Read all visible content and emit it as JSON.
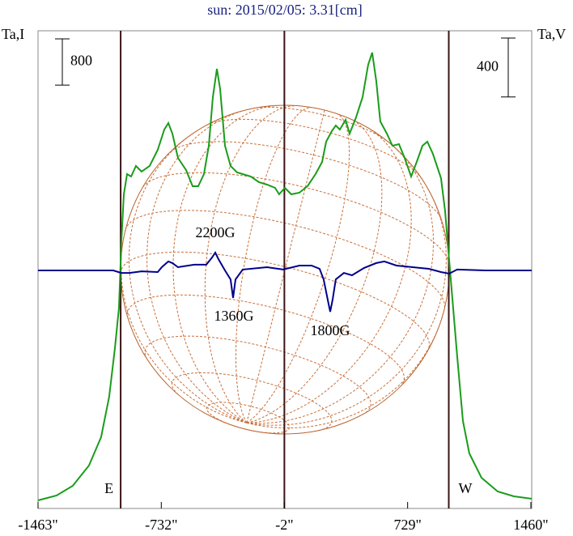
{
  "chart_data": {
    "type": "line",
    "title": "sun: 2015/02/05: 3.31[cm]",
    "y_label": "Ta,I",
    "y2_label": "Ta,V",
    "xlim": [
      -1463,
      1465
    ],
    "xticks": [
      {
        "value": -1463,
        "label": "-1463\""
      },
      {
        "value": -732,
        "label": "-732\""
      },
      {
        "value": -2,
        "label": "-2\""
      },
      {
        "value": 729,
        "label": "729\""
      },
      {
        "value": 1460,
        "label": "1460\""
      }
    ],
    "ylim": [
      -140,
      8120
    ],
    "y2lim": [
      -1617,
      1628
    ],
    "scale_bars": [
      {
        "axis": "y",
        "value": 800
      },
      {
        "axis": "y2",
        "value": 400
      }
    ],
    "vlines": [
      -973,
      -2,
      973
    ],
    "limb_labels": [
      "E",
      "W"
    ],
    "annotations": [
      "2200G",
      "1360G",
      "1800G"
    ],
    "series": [
      {
        "name": "I",
        "color": "#1a9c1a",
        "x": [
          -1463,
          -1353,
          -1257,
          -1161,
          -1089,
          -1041,
          -1007,
          -983,
          -969,
          -954,
          -935,
          -911,
          -882,
          -849,
          -801,
          -753,
          -714,
          -690,
          -666,
          -633,
          -585,
          -546,
          -513,
          -479,
          -450,
          -426,
          -402,
          -383,
          -354,
          -321,
          -282,
          -249,
          -201,
          -153,
          -105,
          -57,
          -33,
          1,
          39,
          87,
          135,
          183,
          222,
          246,
          279,
          303,
          327,
          361,
          385,
          423,
          462,
          495,
          519,
          543,
          567,
          606,
          639,
          678,
          711,
          750,
          783,
          817,
          846,
          879,
          927,
          951,
          975,
          999,
          1023,
          1057,
          1095,
          1167,
          1263,
          1359,
          1465
        ],
        "values": [
          0,
          84,
          252,
          602,
          1092,
          1792,
          2632,
          3332,
          4452,
          5292,
          5642,
          5600,
          5782,
          5684,
          5782,
          6062,
          6412,
          6524,
          6342,
          5922,
          5712,
          5432,
          5432,
          5642,
          6132,
          6972,
          7462,
          7112,
          6132,
          5782,
          5670,
          5642,
          5600,
          5502,
          5460,
          5404,
          5292,
          5404,
          5292,
          5320,
          5432,
          5642,
          5852,
          6202,
          6384,
          6482,
          6412,
          6580,
          6342,
          6622,
          6972,
          7532,
          7742,
          7252,
          6552,
          6342,
          6132,
          6160,
          5922,
          5600,
          5852,
          6132,
          6202,
          5992,
          5572,
          5012,
          4172,
          3332,
          2492,
          1372,
          812,
          392,
          154,
          70,
          28
        ]
      },
      {
        "name": "V",
        "color": "#00008b",
        "axis": "y2",
        "x": [
          -1463,
          -1017,
          -969,
          -921,
          -849,
          -753,
          -729,
          -690,
          -666,
          -633,
          -537,
          -465,
          -431,
          -412,
          -393,
          -354,
          -321,
          -306,
          -292,
          -249,
          -105,
          -9,
          87,
          159,
          207,
          231,
          255,
          270,
          284,
          303,
          351,
          399,
          471,
          543,
          591,
          663,
          759,
          855,
          927,
          975,
          1023,
          1191,
          1465
        ],
        "values": [
          0,
          0,
          -17,
          -17,
          -6,
          -11,
          22,
          61,
          50,
          22,
          39,
          39,
          88,
          121,
          77,
          0,
          -61,
          -187,
          -61,
          6,
          22,
          6,
          33,
          33,
          11,
          -61,
          -198,
          -281,
          -198,
          -61,
          -17,
          -33,
          17,
          50,
          61,
          33,
          22,
          11,
          -11,
          -22,
          6,
          0,
          0
        ]
      }
    ]
  }
}
